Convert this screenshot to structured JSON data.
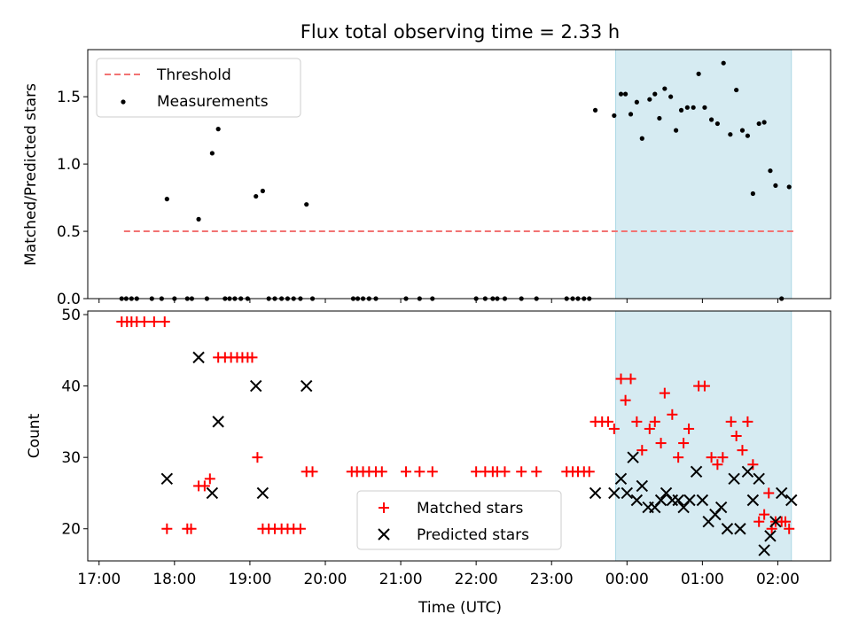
{
  "chart_data": [
    {
      "type": "scatter",
      "title": "Flux total observing time = 2.33 h",
      "xlabel": "",
      "ylabel": "Matched/Predicted stars",
      "x_unit": "hours since 17:00 UTC",
      "xlim": [
        -0.15,
        9.7
      ],
      "ylim": [
        0,
        1.85
      ],
      "yticks": [
        0.0,
        0.5,
        1.0,
        1.5
      ],
      "ytick_labels": [
        "0.0",
        "0.5",
        "1.0",
        "1.5"
      ],
      "shaded_span": [
        6.85,
        9.18
      ],
      "legend": {
        "position": "top-left",
        "threshold_label": "Threshold",
        "measurements_label": "Measurements"
      },
      "threshold": {
        "value": 0.5,
        "x_range": [
          0.33,
          9.22
        ],
        "color": "#f27373"
      },
      "measurements": [
        [
          0.3,
          0
        ],
        [
          0.36,
          0
        ],
        [
          0.43,
          0
        ],
        [
          0.5,
          0
        ],
        [
          0.7,
          0
        ],
        [
          0.83,
          0
        ],
        [
          0.9,
          0.74
        ],
        [
          1.0,
          0
        ],
        [
          1.17,
          0
        ],
        [
          1.23,
          0
        ],
        [
          1.32,
          0.59
        ],
        [
          1.43,
          0
        ],
        [
          1.5,
          1.08
        ],
        [
          1.58,
          1.26
        ],
        [
          1.67,
          0
        ],
        [
          1.73,
          0
        ],
        [
          1.8,
          0
        ],
        [
          1.88,
          0
        ],
        [
          1.97,
          0
        ],
        [
          2.08,
          0.76
        ],
        [
          2.17,
          0.8
        ],
        [
          2.25,
          0
        ],
        [
          2.33,
          0
        ],
        [
          2.42,
          0
        ],
        [
          2.5,
          0
        ],
        [
          2.58,
          0
        ],
        [
          2.67,
          0
        ],
        [
          2.75,
          0.7
        ],
        [
          2.83,
          0
        ],
        [
          3.37,
          0
        ],
        [
          3.43,
          0
        ],
        [
          3.5,
          0
        ],
        [
          3.58,
          0
        ],
        [
          3.67,
          0
        ],
        [
          4.07,
          0
        ],
        [
          4.25,
          0
        ],
        [
          4.42,
          0
        ],
        [
          5.0,
          0
        ],
        [
          5.12,
          0
        ],
        [
          5.22,
          0
        ],
        [
          5.28,
          0
        ],
        [
          5.38,
          0
        ],
        [
          5.6,
          0
        ],
        [
          5.8,
          0
        ],
        [
          6.2,
          0
        ],
        [
          6.28,
          0
        ],
        [
          6.35,
          0
        ],
        [
          6.43,
          0
        ],
        [
          6.5,
          0
        ],
        [
          6.58,
          1.4
        ],
        [
          6.83,
          1.36
        ],
        [
          6.92,
          1.52
        ],
        [
          6.98,
          1.52
        ],
        [
          7.05,
          1.37
        ],
        [
          7.13,
          1.46
        ],
        [
          7.2,
          1.19
        ],
        [
          7.3,
          1.48
        ],
        [
          7.37,
          1.52
        ],
        [
          7.43,
          1.34
        ],
        [
          7.5,
          1.56
        ],
        [
          7.58,
          1.5
        ],
        [
          7.65,
          1.25
        ],
        [
          7.72,
          1.4
        ],
        [
          7.8,
          1.42
        ],
        [
          7.88,
          1.42
        ],
        [
          7.95,
          1.67
        ],
        [
          8.03,
          1.42
        ],
        [
          8.12,
          1.33
        ],
        [
          8.2,
          1.3
        ],
        [
          8.28,
          1.75
        ],
        [
          8.37,
          1.22
        ],
        [
          8.45,
          1.55
        ],
        [
          8.53,
          1.25
        ],
        [
          8.6,
          1.21
        ],
        [
          8.67,
          0.78
        ],
        [
          8.75,
          1.3
        ],
        [
          8.82,
          1.31
        ],
        [
          8.9,
          0.95
        ],
        [
          8.97,
          0.84
        ],
        [
          9.05,
          0
        ],
        [
          9.15,
          0.83
        ]
      ]
    },
    {
      "type": "scatter",
      "xlabel": "Time (UTC)",
      "ylabel": "Count",
      "xlim": [
        -0.15,
        9.7
      ],
      "ylim": [
        15.5,
        50.5
      ],
      "yticks": [
        20,
        30,
        40,
        50
      ],
      "ytick_labels": [
        "20",
        "30",
        "40",
        "50"
      ],
      "xtick_positions": [
        0,
        1,
        2,
        3,
        4,
        5,
        6,
        7,
        8,
        9
      ],
      "xtick_labels": [
        "17:00",
        "18:00",
        "19:00",
        "20:00",
        "21:00",
        "22:00",
        "23:00",
        "00:00",
        "01:00",
        "02:00"
      ],
      "shaded_span": [
        6.85,
        9.18
      ],
      "legend": {
        "position": "bottom-center",
        "matched_label": "Matched stars",
        "predicted_label": "Predicted stars"
      },
      "series": [
        {
          "name": "Matched stars",
          "marker": "plus",
          "color": "#ff0000",
          "points": [
            [
              0.3,
              49
            ],
            [
              0.37,
              49
            ],
            [
              0.43,
              49
            ],
            [
              0.5,
              49
            ],
            [
              0.6,
              49
            ],
            [
              0.73,
              49
            ],
            [
              0.87,
              49
            ],
            [
              0.9,
              20
            ],
            [
              1.17,
              20
            ],
            [
              1.22,
              20
            ],
            [
              1.32,
              26
            ],
            [
              1.4,
              26
            ],
            [
              1.47,
              27
            ],
            [
              1.58,
              44
            ],
            [
              1.67,
              44
            ],
            [
              1.75,
              44
            ],
            [
              1.83,
              44
            ],
            [
              1.9,
              44
            ],
            [
              1.97,
              44
            ],
            [
              2.03,
              44
            ],
            [
              2.1,
              30
            ],
            [
              2.17,
              20
            ],
            [
              2.25,
              20
            ],
            [
              2.33,
              20
            ],
            [
              2.42,
              20
            ],
            [
              2.5,
              20
            ],
            [
              2.58,
              20
            ],
            [
              2.67,
              20
            ],
            [
              2.75,
              28
            ],
            [
              2.83,
              28
            ],
            [
              3.35,
              28
            ],
            [
              3.42,
              28
            ],
            [
              3.5,
              28
            ],
            [
              3.58,
              28
            ],
            [
              3.67,
              28
            ],
            [
              3.75,
              28
            ],
            [
              4.07,
              28
            ],
            [
              4.25,
              28
            ],
            [
              4.42,
              28
            ],
            [
              5.0,
              28
            ],
            [
              5.12,
              28
            ],
            [
              5.22,
              28
            ],
            [
              5.28,
              28
            ],
            [
              5.38,
              28
            ],
            [
              5.6,
              28
            ],
            [
              5.8,
              28
            ],
            [
              6.2,
              28
            ],
            [
              6.28,
              28
            ],
            [
              6.35,
              28
            ],
            [
              6.43,
              28
            ],
            [
              6.5,
              28
            ],
            [
              6.58,
              35
            ],
            [
              6.67,
              35
            ],
            [
              6.75,
              35
            ],
            [
              6.83,
              34
            ],
            [
              6.92,
              41
            ],
            [
              6.98,
              38
            ],
            [
              7.05,
              41
            ],
            [
              7.13,
              35
            ],
            [
              7.2,
              31
            ],
            [
              7.3,
              34
            ],
            [
              7.37,
              35
            ],
            [
              7.45,
              32
            ],
            [
              7.5,
              39
            ],
            [
              7.6,
              36
            ],
            [
              7.68,
              30
            ],
            [
              7.75,
              32
            ],
            [
              7.82,
              34
            ],
            [
              7.95,
              40
            ],
            [
              8.03,
              40
            ],
            [
              8.12,
              30
            ],
            [
              8.2,
              29
            ],
            [
              8.27,
              30
            ],
            [
              8.38,
              35
            ],
            [
              8.45,
              33
            ],
            [
              8.53,
              31
            ],
            [
              8.6,
              35
            ],
            [
              8.67,
              29
            ],
            [
              8.75,
              21
            ],
            [
              8.82,
              22
            ],
            [
              8.88,
              25
            ],
            [
              8.92,
              20
            ],
            [
              8.97,
              21
            ],
            [
              9.05,
              21
            ],
            [
              9.1,
              21
            ],
            [
              9.15,
              20
            ]
          ]
        },
        {
          "name": "Predicted stars",
          "marker": "x",
          "color": "#000000",
          "points": [
            [
              0.9,
              27
            ],
            [
              1.32,
              44
            ],
            [
              1.5,
              25
            ],
            [
              1.58,
              35
            ],
            [
              2.08,
              40
            ],
            [
              2.17,
              25
            ],
            [
              2.75,
              40
            ],
            [
              6.58,
              25
            ],
            [
              6.83,
              25
            ],
            [
              6.92,
              27
            ],
            [
              7.0,
              25
            ],
            [
              7.08,
              30
            ],
            [
              7.13,
              24
            ],
            [
              7.2,
              26
            ],
            [
              7.28,
              23
            ],
            [
              7.37,
              23
            ],
            [
              7.45,
              24
            ],
            [
              7.52,
              25
            ],
            [
              7.6,
              24
            ],
            [
              7.68,
              24
            ],
            [
              7.75,
              23
            ],
            [
              7.83,
              24
            ],
            [
              7.92,
              28
            ],
            [
              8.0,
              24
            ],
            [
              8.08,
              21
            ],
            [
              8.17,
              22
            ],
            [
              8.25,
              23
            ],
            [
              8.33,
              20
            ],
            [
              8.42,
              27
            ],
            [
              8.5,
              20
            ],
            [
              8.6,
              28
            ],
            [
              8.67,
              24
            ],
            [
              8.75,
              27
            ],
            [
              8.82,
              17
            ],
            [
              8.9,
              19
            ],
            [
              8.97,
              21
            ],
            [
              9.05,
              25
            ],
            [
              9.18,
              24
            ]
          ]
        }
      ]
    }
  ]
}
